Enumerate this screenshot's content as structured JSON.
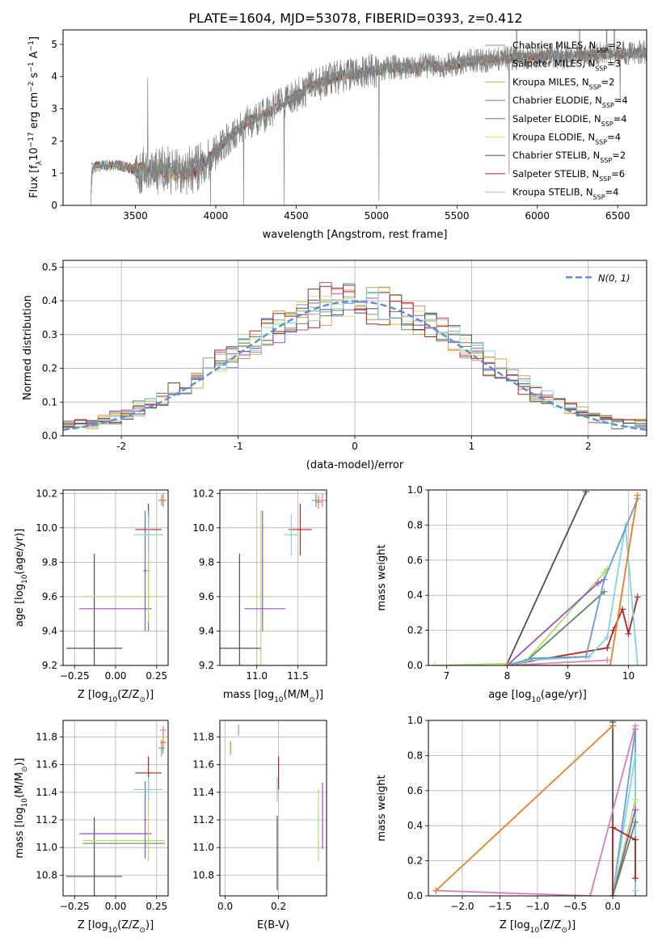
{
  "figure": {
    "title": "PLATE=1604, MJD=53078, FIBERID=0393, z=0.412"
  },
  "colors": {
    "model_colors": [
      "#6b9bd1",
      "#ec8e5a",
      "#d9a441",
      "#5b8c5a",
      "#9b4fc7",
      "#e6e063",
      "#505050",
      "#b22222",
      "#7fd4e0"
    ],
    "panel_colors": [
      "#505050",
      "#b0e060",
      "#9b4fc7",
      "#b22222",
      "#5b8c5a",
      "#7fd4e0",
      "#6b9bd1",
      "#e07bb7",
      "#e67e22"
    ],
    "data_gray": "#808080",
    "gauss": "#5b8ed6",
    "grid": "#b0b0b0"
  },
  "chart_data": [
    {
      "id": "spectrum",
      "type": "line",
      "title": "PLATE=1604, MJD=53078, FIBERID=0393, z=0.412",
      "xlabel": "wavelength [Angstrom, rest frame]",
      "ylabel": "Flux [f$_\\lambda$10$^{-17}$ erg cm$^{-2}$ s$^{-1}$ A$^{-1}$]",
      "ylabel_parts": [
        "Flux [f",
        "λ",
        "10",
        "−17",
        " erg cm",
        "−2",
        " s",
        "−1",
        " A",
        "−1",
        "]"
      ],
      "xlim": [
        3050,
        6680
      ],
      "ylim": [
        0,
        5.45
      ],
      "xticks": [
        3500,
        4000,
        4500,
        5000,
        5500,
        6000,
        6500
      ],
      "yticks": [
        0,
        1,
        2,
        3,
        4,
        5
      ],
      "legend_position": "upper right",
      "series": [
        {
          "name": "Chabrier MILES, N",
          "sub": "SSP",
          "suffix": "=2"
        },
        {
          "name": "Salpeter MILES, N",
          "sub": "SSP",
          "suffix": "=3"
        },
        {
          "name": "Kroupa MILES, N",
          "sub": "SSP",
          "suffix": "=2"
        },
        {
          "name": "Chabrier ELODIE, N",
          "sub": "SSP",
          "suffix": "=4"
        },
        {
          "name": "Salpeter ELODIE, N",
          "sub": "SSP",
          "suffix": "=4"
        },
        {
          "name": "Kroupa ELODIE, N",
          "sub": "SSP",
          "suffix": "=4"
        },
        {
          "name": "Chabrier STELIB, N",
          "sub": "SSP",
          "suffix": "=2"
        },
        {
          "name": "Salpeter STELIB, N",
          "sub": "SSP",
          "suffix": "=6"
        },
        {
          "name": "Kroupa STELIB, N",
          "sub": "SSP",
          "suffix": "=4"
        }
      ],
      "continuum": [
        [
          3220,
          0
        ],
        [
          3230,
          1.15
        ],
        [
          3300,
          1.25
        ],
        [
          3400,
          1.25
        ],
        [
          3500,
          1.1
        ],
        [
          3600,
          1.05
        ],
        [
          3700,
          1.1
        ],
        [
          3800,
          1.0
        ],
        [
          3900,
          1.2
        ],
        [
          4000,
          1.7
        ],
        [
          4100,
          2.2
        ],
        [
          4200,
          2.6
        ],
        [
          4300,
          2.8
        ],
        [
          4400,
          3.1
        ],
        [
          4500,
          3.4
        ],
        [
          4600,
          3.7
        ],
        [
          4700,
          3.9
        ],
        [
          4800,
          4.05
        ],
        [
          4900,
          4.1
        ],
        [
          5000,
          4.2
        ],
        [
          5100,
          4.3
        ],
        [
          5200,
          4.25
        ],
        [
          5300,
          4.35
        ],
        [
          5400,
          4.3
        ],
        [
          5500,
          4.4
        ],
        [
          5600,
          4.5
        ],
        [
          5700,
          4.5
        ],
        [
          5800,
          4.55
        ],
        [
          5900,
          4.6
        ],
        [
          6000,
          4.6
        ],
        [
          6100,
          4.65
        ],
        [
          6200,
          4.6
        ],
        [
          6300,
          4.65
        ],
        [
          6400,
          4.7
        ],
        [
          6500,
          4.7
        ],
        [
          6680,
          4.75
        ]
      ]
    },
    {
      "id": "residuals",
      "type": "histogram",
      "xlabel": "(data-model)/error",
      "ylabel": "Normed distribution",
      "xlim": [
        -2.5,
        2.5
      ],
      "ylim": [
        0,
        0.52
      ],
      "xticks": [
        -2,
        -1,
        0,
        1,
        2
      ],
      "yticks": [
        0.0,
        0.1,
        0.2,
        0.3,
        0.4,
        0.5
      ],
      "legend_position": "upper right",
      "legend_label": "N(0, 1)"
    },
    {
      "id": "age-Z",
      "type": "scatter",
      "xlabel_parts": [
        "Z [log",
        "10",
        "(Z/Z",
        "⊙",
        ")]"
      ],
      "ylabel_parts": [
        "age  [log",
        "10",
        "(age/yr)]"
      ],
      "xlim": [
        -0.32,
        0.32
      ],
      "ylim": [
        9.2,
        10.22
      ],
      "xticks": [
        -0.25,
        0.0,
        0.25
      ],
      "xticklabels": [
        "−0.25",
        "0.00",
        "0.25"
      ],
      "yticks": [
        9.2,
        9.4,
        9.6,
        9.8,
        10.0,
        10.2
      ],
      "points": [
        {
          "x": -0.13,
          "y": 9.3,
          "ex": 0.17,
          "ey": 0.55,
          "c": 0
        },
        {
          "x": 0.05,
          "y": 9.6,
          "ex": 0.25,
          "ey": 0.0,
          "c": 1
        },
        {
          "x": 0.0,
          "y": 9.53,
          "ex": 0.22,
          "ey": 0.0,
          "c": 2
        },
        {
          "x": 0.18,
          "y": 9.75,
          "ex": 0.01,
          "ey": 0.35,
          "c": 2
        },
        {
          "x": 0.2,
          "y": 9.99,
          "ex": 0.08,
          "ey": 0.15,
          "c": 3
        },
        {
          "x": 0.2,
          "y": 9.75,
          "ex": 0.01,
          "ey": 0.35,
          "c": 4
        },
        {
          "x": 0.2,
          "y": 9.75,
          "ex": 0.01,
          "ey": 0.3,
          "c": 1
        },
        {
          "x": 0.2,
          "y": 9.96,
          "ex": 0.09,
          "ey": 0.12,
          "c": 5
        },
        {
          "x": 0.28,
          "y": 10.16,
          "ex": 0.02,
          "ey": 0.03,
          "c": 6
        },
        {
          "x": 0.29,
          "y": 10.16,
          "ex": 0.02,
          "ey": 0.04,
          "c": 7
        },
        {
          "x": 0.29,
          "y": 10.16,
          "ex": 0.02,
          "ey": 0.04,
          "c": 8
        }
      ]
    },
    {
      "id": "age-mass",
      "type": "scatter",
      "xlabel_parts": [
        "mass [log",
        "10",
        "(M/M",
        "⊙",
        ")]"
      ],
      "ylabel": "",
      "xlim": [
        10.55,
        11.85
      ],
      "ylim": [
        9.2,
        10.22
      ],
      "xticks": [
        11.0,
        11.5
      ],
      "xticklabels": [
        "11.0",
        "11.5"
      ],
      "yticks": [
        9.2,
        9.4,
        9.6,
        9.8,
        10.0,
        10.2
      ],
      "points": [
        {
          "x": 10.79,
          "y": 9.3,
          "ex": 0.26,
          "ey": 0.55,
          "c": 0
        },
        {
          "x": 11.05,
          "y": 9.6,
          "ex": 0.15,
          "ey": 0.5,
          "c": 1
        },
        {
          "x": 11.1,
          "y": 9.53,
          "ex": 0.25,
          "ey": 0.0,
          "c": 2
        },
        {
          "x": 11.07,
          "y": 9.75,
          "ex": 0.0,
          "ey": 0.35,
          "c": 2
        },
        {
          "x": 11.53,
          "y": 9.99,
          "ex": 0.14,
          "ey": 0.15,
          "c": 3
        },
        {
          "x": 11.42,
          "y": 9.96,
          "ex": 0.09,
          "ey": 0.12,
          "c": 5
        },
        {
          "x": 11.72,
          "y": 10.16,
          "ex": 0.05,
          "ey": 0.04,
          "c": 6
        },
        {
          "x": 11.8,
          "y": 10.16,
          "ex": 0.05,
          "ey": 0.04,
          "c": 7
        },
        {
          "x": 11.75,
          "y": 10.15,
          "ex": 0.04,
          "ey": 0.04,
          "c": 8
        }
      ]
    },
    {
      "id": "weight-age",
      "type": "line",
      "xlabel_parts": [
        "age  [log",
        "10",
        "(age/yr)]"
      ],
      "ylabel": "mass weight",
      "xlim": [
        6.7,
        10.3
      ],
      "ylim": [
        0,
        1.0
      ],
      "xticks": [
        7,
        8,
        9,
        10
      ],
      "yticks": [
        0.0,
        0.2,
        0.4,
        0.6,
        0.8,
        1.0
      ],
      "series": [
        {
          "c": 0,
          "x": [
            8.0,
            9.3
          ],
          "y": [
            0.01,
            0.99
          ]
        },
        {
          "c": 1,
          "x": [
            6.8,
            8.0,
            8.3,
            9.6,
            9.65
          ],
          "y": [
            0.0,
            0.01,
            0.02,
            0.53,
            0.55
          ]
        },
        {
          "c": 2,
          "x": [
            8.0,
            9.5,
            9.6
          ],
          "y": [
            0.0,
            0.47,
            0.49
          ]
        },
        {
          "c": 3,
          "x": [
            8.0,
            8.3,
            9.65,
            9.75,
            9.9,
            10.0,
            10.15
          ],
          "y": [
            0.0,
            0.02,
            0.1,
            0.2,
            0.32,
            0.18,
            0.39
          ]
        },
        {
          "c": 4,
          "x": [
            8.0,
            8.3,
            9.6
          ],
          "y": [
            0.0,
            0.02,
            0.42
          ]
        },
        {
          "c": 5,
          "x": [
            8.0,
            8.4,
            9.35,
            9.65,
            9.95,
            10.15
          ],
          "y": [
            0.0,
            0.03,
            0.05,
            0.16,
            0.8,
            0.0
          ]
        },
        {
          "c": 6,
          "x": [
            8.0,
            8.4,
            9.3,
            9.6,
            10.15
          ],
          "y": [
            0.0,
            0.04,
            0.05,
            0.49,
            0.95
          ]
        },
        {
          "c": 7,
          "x": [
            8.0,
            9.65
          ],
          "y": [
            0.0,
            0.03
          ]
        },
        {
          "c": 8,
          "x": [
            8.0,
            9.7,
            10.15
          ],
          "y": [
            0.0,
            0.0,
            0.97
          ]
        }
      ]
    },
    {
      "id": "mass-Z",
      "type": "scatter",
      "xlabel_parts": [
        "Z [log",
        "10",
        "(Z/Z",
        "⊙",
        ")]"
      ],
      "ylabel_parts": [
        "mass [log",
        "10",
        "(M/M",
        "⊙",
        ")]"
      ],
      "xlim": [
        -0.32,
        0.32
      ],
      "ylim": [
        10.65,
        11.92
      ],
      "xticks": [
        -0.25,
        0.0,
        0.25
      ],
      "xticklabels": [
        "−0.25",
        "0.00",
        "0.25"
      ],
      "yticks": [
        10.8,
        11.0,
        11.2,
        11.4,
        11.6,
        11.8
      ],
      "points": [
        {
          "x": -0.13,
          "y": 10.79,
          "ex": 0.17,
          "ey": 0.43,
          "c": 0
        },
        {
          "x": 0.05,
          "y": 11.05,
          "ex": 0.25,
          "ey": 0.0,
          "c": 1
        },
        {
          "x": 0.05,
          "y": 11.03,
          "ex": 0.25,
          "ey": 0.0,
          "c": 4
        },
        {
          "x": 0.0,
          "y": 11.1,
          "ex": 0.22,
          "ey": 0.0,
          "c": 2
        },
        {
          "x": 0.18,
          "y": 11.2,
          "ex": 0.01,
          "ey": 0.28,
          "c": 2
        },
        {
          "x": 0.2,
          "y": 11.54,
          "ex": 0.08,
          "ey": 0.12,
          "c": 3
        },
        {
          "x": 0.2,
          "y": 11.2,
          "ex": 0.01,
          "ey": 0.3,
          "c": 1
        },
        {
          "x": 0.2,
          "y": 11.42,
          "ex": 0.09,
          "ey": 0.09,
          "c": 5
        },
        {
          "x": 0.28,
          "y": 11.72,
          "ex": 0.02,
          "ey": 0.06,
          "c": 6
        },
        {
          "x": 0.29,
          "y": 11.85,
          "ex": 0.02,
          "ey": 0.03,
          "c": 7
        },
        {
          "x": 0.29,
          "y": 11.76,
          "ex": 0.02,
          "ey": 0.08,
          "c": 8
        }
      ]
    },
    {
      "id": "mass-EBV",
      "type": "scatter",
      "xlabel": "E(B-V)",
      "ylabel": "",
      "xlim": [
        -0.02,
        0.38
      ],
      "ylim": [
        10.65,
        11.92
      ],
      "xticks": [
        0.0,
        0.2
      ],
      "xticklabels": [
        "0.0",
        "0.2"
      ],
      "yticks": [
        10.8,
        11.0,
        11.2,
        11.4,
        11.6,
        11.8
      ],
      "points": [
        {
          "x": 0.195,
          "y": 10.96,
          "ex": 0.0,
          "ey": 0.27,
          "c": 0
        },
        {
          "x": 0.35,
          "y": 11.16,
          "ex": 0.0,
          "ey": 0.26,
          "c": 1
        },
        {
          "x": 0.365,
          "y": 11.23,
          "ex": 0.0,
          "ey": 0.24,
          "c": 2
        },
        {
          "x": 0.2,
          "y": 11.54,
          "ex": 0.0,
          "ey": 0.12,
          "c": 3
        },
        {
          "x": 0.195,
          "y": 11.42,
          "ex": 0.0,
          "ey": 0.09,
          "c": 5
        },
        {
          "x": 0.05,
          "y": 11.85,
          "ex": 0.0,
          "ey": 0.04,
          "c": 7
        },
        {
          "x": 0.02,
          "y": 11.72,
          "ex": 0.0,
          "ey": 0.05,
          "c": 8
        }
      ]
    },
    {
      "id": "weight-Z",
      "type": "line",
      "xlabel_parts": [
        "Z [log",
        "10",
        "(Z/Z",
        "⊙",
        ")]"
      ],
      "ylabel": "mass weight",
      "xlim": [
        -2.45,
        0.45
      ],
      "ylim": [
        0,
        1.0
      ],
      "xticks": [
        -2.0,
        -1.5,
        -1.0,
        -0.5,
        0.0
      ],
      "xticklabels": [
        "−2.0",
        "−1.5",
        "−1.0",
        "−0.5",
        "0.0"
      ],
      "yticks": [
        0.0,
        0.2,
        0.4,
        0.6,
        0.8,
        1.0
      ],
      "series": [
        {
          "c": 0,
          "x": [
            0.0,
            0.0
          ],
          "y": [
            0.0,
            0.99
          ]
        },
        {
          "c": 6,
          "x": [
            0.0,
            0.3,
            0.3
          ],
          "y": [
            0.0,
            0.95,
            0.0
          ]
        },
        {
          "c": 5,
          "x": [
            0.0,
            0.3,
            0.3
          ],
          "y": [
            0.0,
            0.8,
            0.03
          ]
        },
        {
          "c": 1,
          "x": [
            0.0,
            0.3
          ],
          "y": [
            0.0,
            0.55
          ]
        },
        {
          "c": 2,
          "x": [
            0.0,
            0.3
          ],
          "y": [
            0.0,
            0.49
          ]
        },
        {
          "c": 4,
          "x": [
            0.0,
            0.3
          ],
          "y": [
            0.0,
            0.42
          ]
        },
        {
          "c": 3,
          "x": [
            0.0,
            0.0,
            0.3,
            0.3
          ],
          "y": [
            0.0,
            0.39,
            0.32,
            0.1
          ]
        },
        {
          "c": 7,
          "x": [
            -2.35,
            -0.3,
            0.3
          ],
          "y": [
            0.03,
            0.0,
            0.97
          ]
        },
        {
          "c": 8,
          "x": [
            -2.35,
            0.0
          ],
          "y": [
            0.03,
            0.97
          ]
        }
      ]
    }
  ]
}
